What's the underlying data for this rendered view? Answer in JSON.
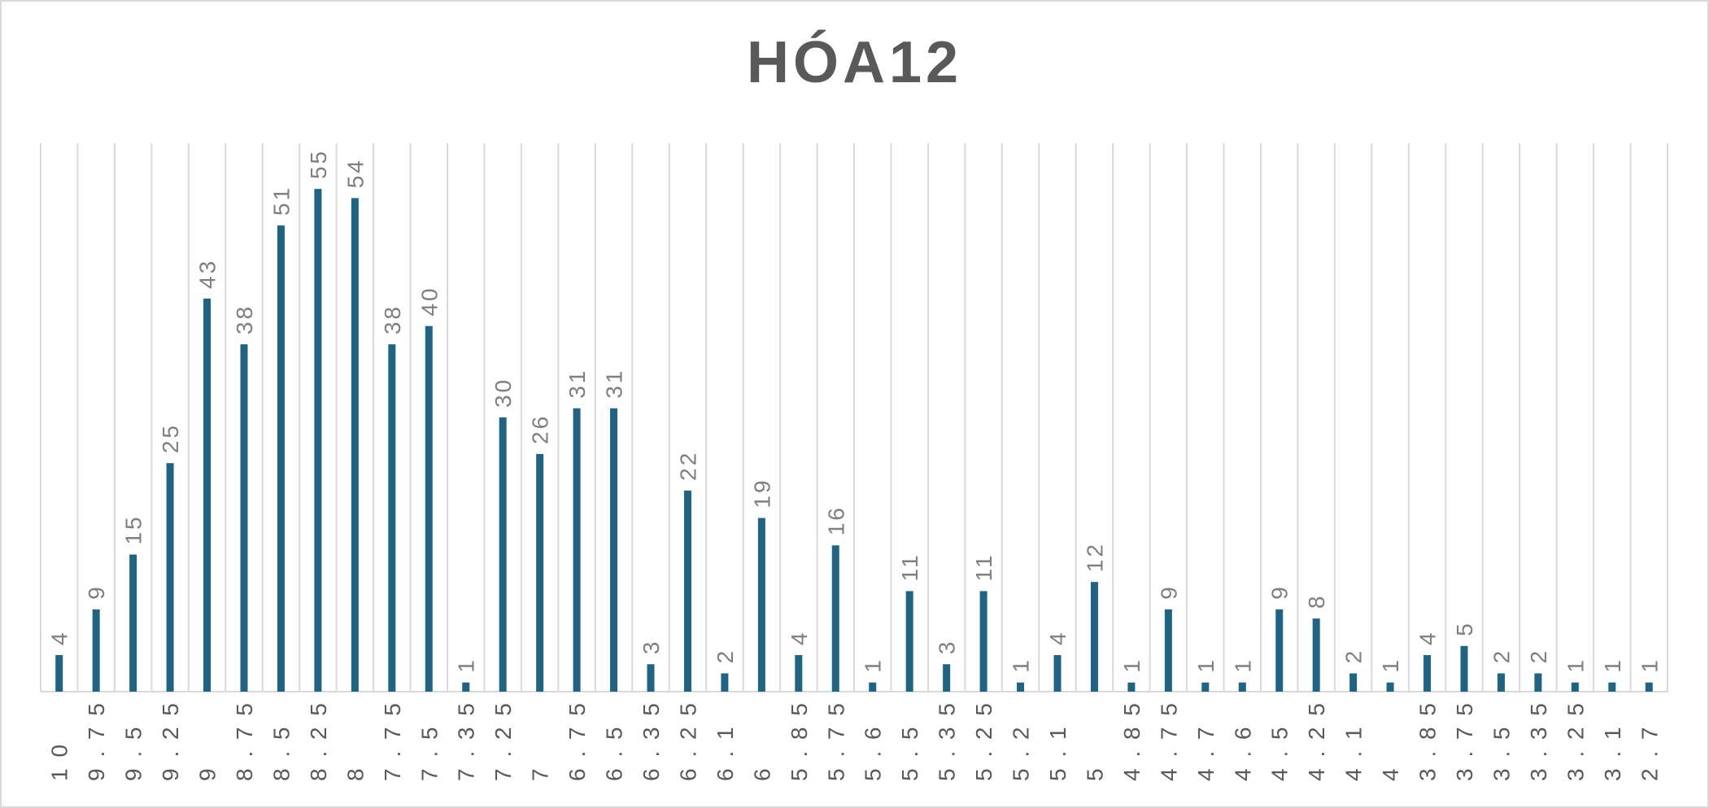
{
  "chart_data": {
    "type": "bar",
    "title": "HÓA12",
    "xlabel": "",
    "ylabel": "",
    "categories": [
      "10",
      "9.75",
      "9.5",
      "9.25",
      "9",
      "8.75",
      "8.5",
      "8.25",
      "8",
      "7.75",
      "7.5",
      "7.35",
      "7.25",
      "7",
      "6.75",
      "6.5",
      "6.35",
      "6.25",
      "6.1",
      "6",
      "5.85",
      "5.75",
      "5.6",
      "5.5",
      "5.35",
      "5.25",
      "5.2",
      "5.1",
      "5",
      "4.85",
      "4.75",
      "4.7",
      "4.6",
      "4.5",
      "4.25",
      "4.1",
      "4",
      "3.85",
      "3.75",
      "3.5",
      "3.35",
      "3.25",
      "3.1",
      "2.7"
    ],
    "values": [
      4,
      9,
      15,
      25,
      43,
      38,
      51,
      55,
      54,
      38,
      40,
      1,
      30,
      26,
      31,
      31,
      3,
      22,
      2,
      19,
      4,
      16,
      1,
      11,
      3,
      11,
      1,
      4,
      12,
      1,
      9,
      1,
      1,
      9,
      8,
      2,
      1,
      4,
      5,
      2,
      2,
      1,
      1,
      1
    ],
    "ylim": [
      0,
      60
    ],
    "grid": "vertical",
    "legend": "none",
    "data_labels": true,
    "bar_color": "#1f6485"
  }
}
